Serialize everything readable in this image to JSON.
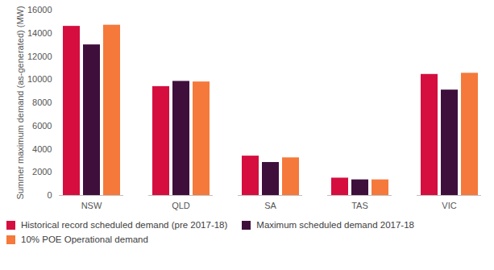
{
  "chart_data": {
    "type": "bar",
    "y_label": "Summer maximum demand (as-generated) (MW)",
    "categories": [
      "NSW",
      "QLD",
      "SA",
      "TAS",
      "VIC"
    ],
    "series": [
      {
        "name": "Historical record scheduled demand (pre 2017-18)",
        "color": "#d50e3f",
        "values": [
          14600,
          9400,
          3400,
          1500,
          10450
        ]
      },
      {
        "name": "Maximum scheduled demand 2017-18",
        "color": "#3f0f3c",
        "values": [
          13000,
          9850,
          2850,
          1350,
          9100
        ]
      },
      {
        "name": "10% POE Operational demand",
        "color": "#f5793b",
        "values": [
          14700,
          9800,
          3250,
          1350,
          10550
        ]
      }
    ],
    "ylim": [
      0,
      16000
    ],
    "yticks": [
      0,
      2000,
      4000,
      6000,
      8000,
      10000,
      12000,
      14000,
      16000
    ],
    "grid": false,
    "legend": "bottom"
  }
}
